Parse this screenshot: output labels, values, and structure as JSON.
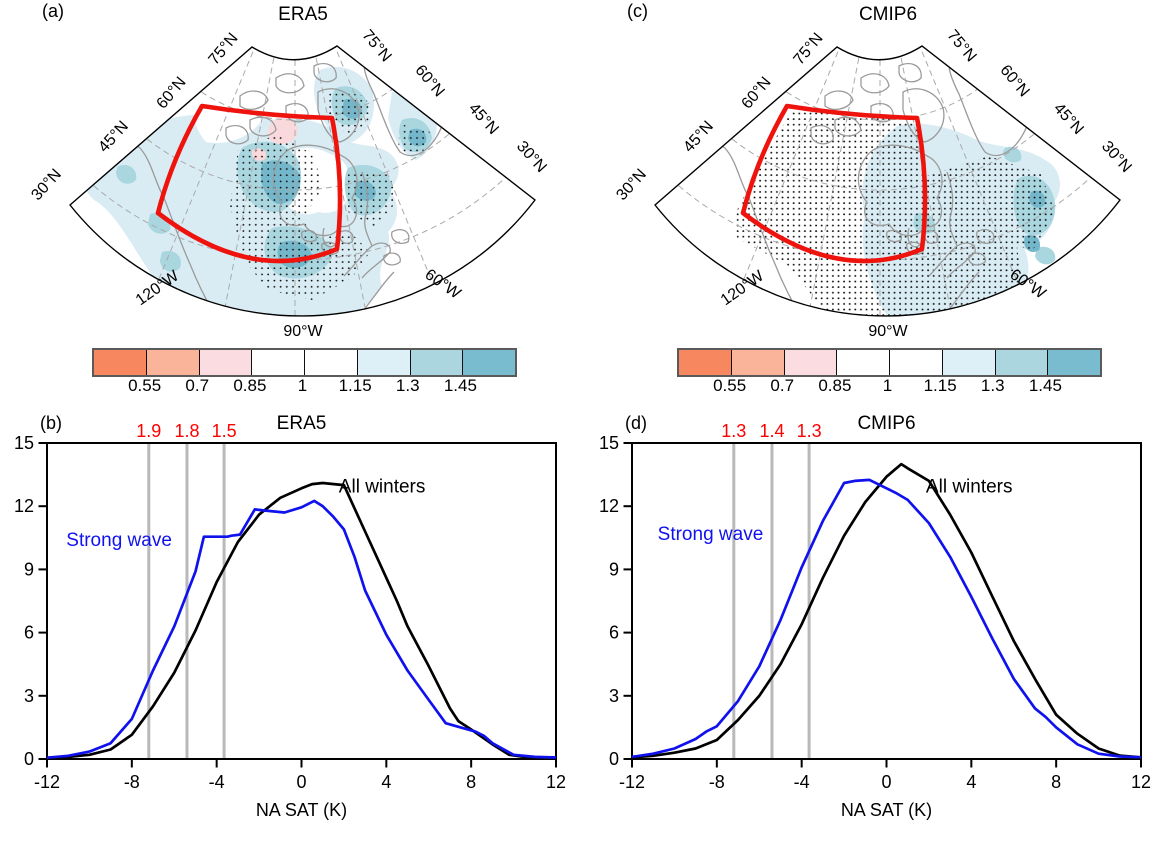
{
  "figure": {
    "panels": {
      "a": {
        "tag": "(a)",
        "title": "ERA5"
      },
      "b": {
        "tag": "(b)",
        "title": "ERA5"
      },
      "c": {
        "tag": "(c)",
        "title": "CMIP6"
      },
      "d": {
        "tag": "(d)",
        "title": "CMIP6"
      }
    }
  },
  "map": {
    "lat_labels": [
      "75°N",
      "60°N",
      "45°N",
      "30°N"
    ],
    "lon_labels": [
      "120°W",
      "90°W",
      "60°W"
    ],
    "box_color": "#ee130c",
    "coast_color": "#9a9a9a",
    "graticule_color": "#aaaaaa",
    "shade_colors": {
      "light_blue": "#d9ecf4",
      "mid_blue": "#a9d6df",
      "teal": "#74b7cb",
      "pink": "#fad9dc"
    }
  },
  "colorbar": {
    "tick_labels": [
      "0.55",
      "0.7",
      "0.85",
      "1",
      "1.15",
      "1.3",
      "1.45"
    ],
    "colors": [
      "#f6875f",
      "#f9b49a",
      "#fbdce1",
      "#ffffff",
      "#ffffff",
      "#ddeff7",
      "#abd6df",
      "#79bccf"
    ]
  },
  "chart_data": [
    {
      "id": "b",
      "type": "line",
      "panel_tag": "(b)",
      "title": "ERA5",
      "xlabel": "NA SAT (K)",
      "xlim": [
        -12,
        12
      ],
      "ylim": [
        0,
        15
      ],
      "xticks": [
        -12,
        -8,
        -4,
        0,
        4,
        8,
        12
      ],
      "yticks": [
        0,
        3,
        6,
        9,
        12,
        15
      ],
      "grid": false,
      "legend_position": "inline",
      "threshold_label_color": "#ff0000",
      "threshold_line_color": "#b9b9b9",
      "thresholds": [
        {
          "x": -7.2,
          "label": "1.9"
        },
        {
          "x": -5.4,
          "label": "1.8"
        },
        {
          "x": -3.65,
          "label": "1.5"
        }
      ],
      "series": [
        {
          "name": "All winters",
          "color": "#000000",
          "label_at": [
            3.8,
            12.65
          ],
          "points": [
            [
              -12,
              0.05
            ],
            [
              -11,
              0.1
            ],
            [
              -10,
              0.2
            ],
            [
              -9,
              0.45
            ],
            [
              -8,
              1.15
            ],
            [
              -7,
              2.5
            ],
            [
              -6,
              4.1
            ],
            [
              -5,
              6.1
            ],
            [
              -4,
              8.4
            ],
            [
              -3,
              10.3
            ],
            [
              -2,
              11.6
            ],
            [
              -1,
              12.4
            ],
            [
              0,
              12.85
            ],
            [
              0.5,
              13.05
            ],
            [
              1,
              13.1
            ],
            [
              2,
              13.0
            ],
            [
              3,
              10.8
            ],
            [
              4,
              8.6
            ],
            [
              4.5,
              7.5
            ],
            [
              5,
              6.3
            ],
            [
              6,
              4.4
            ],
            [
              6.5,
              3.4
            ],
            [
              7,
              2.4
            ],
            [
              7.4,
              1.8
            ],
            [
              8,
              1.4
            ],
            [
              9,
              0.7
            ],
            [
              9.8,
              0.2
            ],
            [
              10.5,
              0.1
            ],
            [
              11,
              0.08
            ],
            [
              12,
              0.06
            ]
          ]
        },
        {
          "name": "Strong wave",
          "color": "#1012ee",
          "label_at": [
            -8.6,
            10.1
          ],
          "points": [
            [
              -12,
              0.06
            ],
            [
              -11,
              0.15
            ],
            [
              -10,
              0.35
            ],
            [
              -9,
              0.75
            ],
            [
              -8,
              1.9
            ],
            [
              -7,
              4.2
            ],
            [
              -6,
              6.3
            ],
            [
              -5,
              8.9
            ],
            [
              -4.6,
              10.55
            ],
            [
              -3.5,
              10.55
            ],
            [
              -3.3,
              10.6
            ],
            [
              -2.9,
              10.65
            ],
            [
              -2.2,
              11.85
            ],
            [
              -1.8,
              11.8
            ],
            [
              -0.8,
              11.7
            ],
            [
              0,
              11.95
            ],
            [
              0.6,
              12.25
            ],
            [
              1,
              12.0
            ],
            [
              1.5,
              11.5
            ],
            [
              2,
              10.9
            ],
            [
              2.5,
              9.6
            ],
            [
              3,
              8.0
            ],
            [
              4,
              5.9
            ],
            [
              5,
              4.2
            ],
            [
              6,
              2.8
            ],
            [
              6.8,
              1.7
            ],
            [
              7.5,
              1.5
            ],
            [
              8.2,
              1.3
            ],
            [
              8.6,
              1.1
            ],
            [
              9,
              0.75
            ],
            [
              10,
              0.2
            ],
            [
              11,
              0.1
            ],
            [
              12,
              0.07
            ]
          ]
        }
      ]
    },
    {
      "id": "d",
      "type": "line",
      "panel_tag": "(d)",
      "title": "CMIP6",
      "xlabel": "NA SAT (K)",
      "xlim": [
        -12,
        12
      ],
      "ylim": [
        0,
        15
      ],
      "xticks": [
        -12,
        -8,
        -4,
        0,
        4,
        8,
        12
      ],
      "yticks": [
        0,
        3,
        6,
        9,
        12,
        15
      ],
      "grid": false,
      "legend_position": "inline",
      "threshold_label_color": "#ff0000",
      "threshold_line_color": "#b9b9b9",
      "thresholds": [
        {
          "x": -7.2,
          "label": "1.3"
        },
        {
          "x": -5.4,
          "label": "1.4"
        },
        {
          "x": -3.65,
          "label": "1.3"
        }
      ],
      "series": [
        {
          "name": "All winters",
          "color": "#000000",
          "label_at": [
            3.9,
            12.65
          ],
          "points": [
            [
              -12,
              0.08
            ],
            [
              -11,
              0.15
            ],
            [
              -10,
              0.3
            ],
            [
              -9,
              0.5
            ],
            [
              -8,
              0.9
            ],
            [
              -7,
              1.85
            ],
            [
              -6,
              3.0
            ],
            [
              -5,
              4.5
            ],
            [
              -4,
              6.4
            ],
            [
              -3,
              8.6
            ],
            [
              -2,
              10.6
            ],
            [
              -1,
              12.2
            ],
            [
              0,
              13.4
            ],
            [
              0.7,
              14.0
            ],
            [
              1,
              13.8
            ],
            [
              2,
              13.2
            ],
            [
              3,
              11.6
            ],
            [
              4,
              9.8
            ],
            [
              5,
              7.7
            ],
            [
              6,
              5.6
            ],
            [
              7,
              3.8
            ],
            [
              8,
              2.1
            ],
            [
              9,
              1.2
            ],
            [
              10,
              0.5
            ],
            [
              11,
              0.16
            ],
            [
              12,
              0.08
            ]
          ]
        },
        {
          "name": "Strong wave",
          "color": "#1012ee",
          "label_at": [
            -8.3,
            10.4
          ],
          "points": [
            [
              -12,
              0.1
            ],
            [
              -11,
              0.25
            ],
            [
              -10,
              0.5
            ],
            [
              -9,
              0.95
            ],
            [
              -8.5,
              1.3
            ],
            [
              -8,
              1.55
            ],
            [
              -7,
              2.75
            ],
            [
              -6,
              4.4
            ],
            [
              -5,
              6.6
            ],
            [
              -4,
              9.1
            ],
            [
              -3,
              11.3
            ],
            [
              -2,
              13.1
            ],
            [
              -1.5,
              13.2
            ],
            [
              -0.8,
              13.25
            ],
            [
              0,
              12.85
            ],
            [
              0.5,
              12.6
            ],
            [
              1,
              12.3
            ],
            [
              2,
              11.2
            ],
            [
              3,
              9.6
            ],
            [
              4,
              7.7
            ],
            [
              5,
              5.7
            ],
            [
              6,
              3.8
            ],
            [
              7,
              2.4
            ],
            [
              7.5,
              2.0
            ],
            [
              8,
              1.5
            ],
            [
              9,
              0.7
            ],
            [
              10,
              0.25
            ],
            [
              11,
              0.12
            ],
            [
              12,
              0.08
            ]
          ]
        }
      ]
    }
  ]
}
